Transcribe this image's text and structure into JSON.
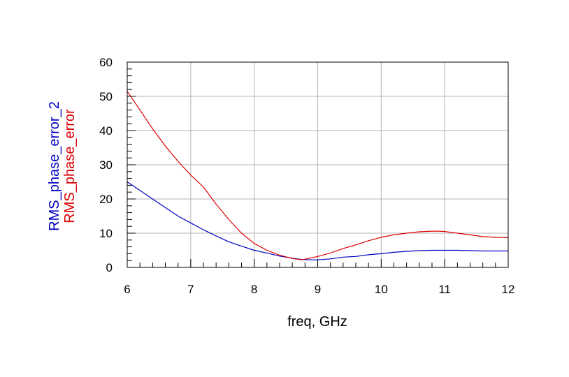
{
  "chart_data": {
    "type": "line",
    "title": "",
    "xlabel": "freq, GHz",
    "ylabels": [
      "RMS_phase_error_2",
      "RMS_phase_error"
    ],
    "xlim": [
      6,
      12
    ],
    "ylim": [
      0,
      60
    ],
    "x_ticks": [
      "6",
      "7",
      "8",
      "9",
      "10",
      "11",
      "12"
    ],
    "y_ticks": [
      "0",
      "10",
      "20",
      "30",
      "40",
      "50",
      "60"
    ],
    "grid": true,
    "legend": "none (series named by stacked y-axis labels)",
    "series": [
      {
        "name": "RMS_phase_error_2",
        "color": "#0000c0",
        "x": [
          6.0,
          6.2,
          6.4,
          6.6,
          6.8,
          7.0,
          7.2,
          7.4,
          7.6,
          7.8,
          8.0,
          8.2,
          8.4,
          8.6,
          8.75,
          8.9,
          9.0,
          9.2,
          9.4,
          9.6,
          9.8,
          10.0,
          10.2,
          10.4,
          10.6,
          10.8,
          11.0,
          11.2,
          11.4,
          11.6,
          11.8,
          12.0
        ],
        "values": [
          25.0,
          22.5,
          20.0,
          17.5,
          15.0,
          13.0,
          11.0,
          9.2,
          7.5,
          6.2,
          5.0,
          4.2,
          3.3,
          2.7,
          2.3,
          2.2,
          2.2,
          2.5,
          3.0,
          3.2,
          3.7,
          4.0,
          4.4,
          4.7,
          4.9,
          5.0,
          5.0,
          5.0,
          4.9,
          4.8,
          4.8,
          4.8
        ]
      },
      {
        "name": "RMS_phase_error",
        "color": "#dd0000",
        "x": [
          6.0,
          6.2,
          6.4,
          6.6,
          6.8,
          7.0,
          7.2,
          7.4,
          7.6,
          7.8,
          8.0,
          8.2,
          8.4,
          8.6,
          8.75,
          8.9,
          9.0,
          9.2,
          9.4,
          9.6,
          9.8,
          10.0,
          10.2,
          10.4,
          10.6,
          10.8,
          10.9,
          11.0,
          11.2,
          11.4,
          11.6,
          11.8,
          12.0
        ],
        "values": [
          51.5,
          46.0,
          40.5,
          35.5,
          31.0,
          27.0,
          23.5,
          18.5,
          14.0,
          10.0,
          7.0,
          5.0,
          3.6,
          2.6,
          2.2,
          2.8,
          3.2,
          4.2,
          5.5,
          6.6,
          7.8,
          8.8,
          9.5,
          10.0,
          10.4,
          10.6,
          10.6,
          10.5,
          10.0,
          9.5,
          9.0,
          8.8,
          8.7
        ]
      }
    ]
  }
}
